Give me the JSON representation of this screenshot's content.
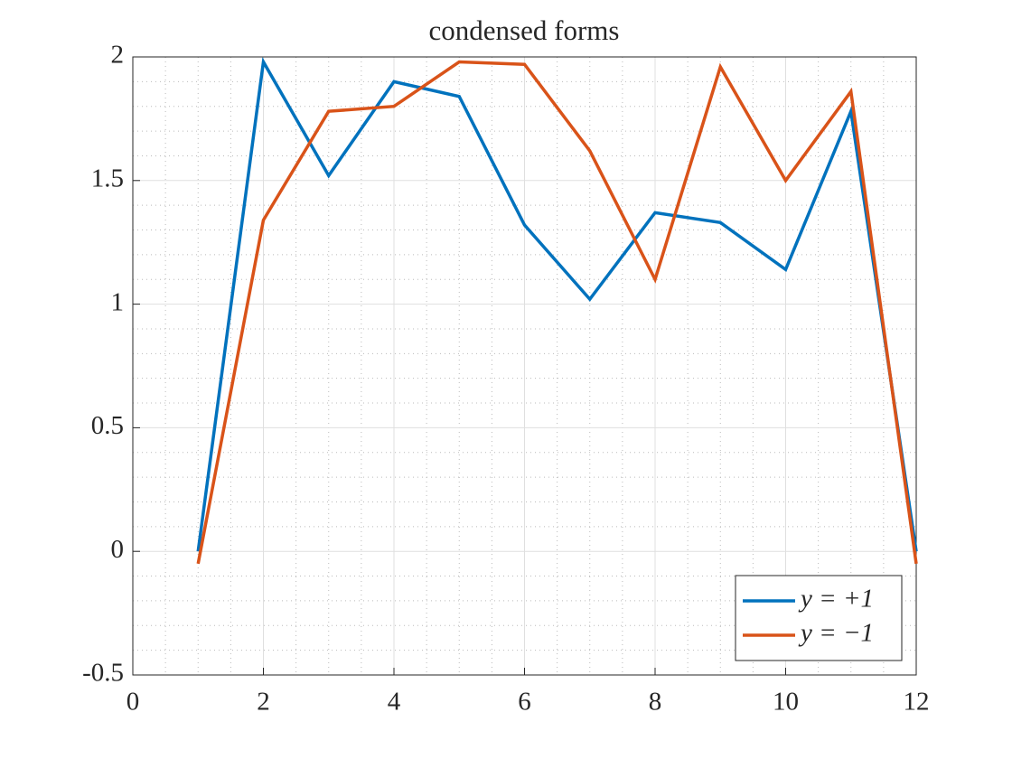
{
  "chart_data": {
    "type": "line",
    "title": "condensed forms",
    "x": [
      1,
      2,
      3,
      4,
      5,
      6,
      7,
      8,
      9,
      10,
      11,
      12
    ],
    "series": [
      {
        "name": "y = +1",
        "color": "#0072bd",
        "values": [
          0,
          1.98,
          1.52,
          1.9,
          1.84,
          1.32,
          1.02,
          1.37,
          1.33,
          1.14,
          1.78,
          0
        ]
      },
      {
        "name": "y = −1",
        "color": "#d95319",
        "values": [
          -0.05,
          1.34,
          1.78,
          1.8,
          1.98,
          1.97,
          1.62,
          1.1,
          1.96,
          1.5,
          1.86,
          -0.05
        ]
      }
    ],
    "xlim": [
      0,
      12
    ],
    "xticks": [
      0,
      2,
      4,
      6,
      8,
      10,
      12
    ],
    "ylim": [
      -0.5,
      2
    ],
    "yticks": [
      -0.5,
      0,
      0.5,
      1,
      1.5,
      2
    ],
    "grid": true,
    "minor_grid": true,
    "legend": "southeast"
  }
}
